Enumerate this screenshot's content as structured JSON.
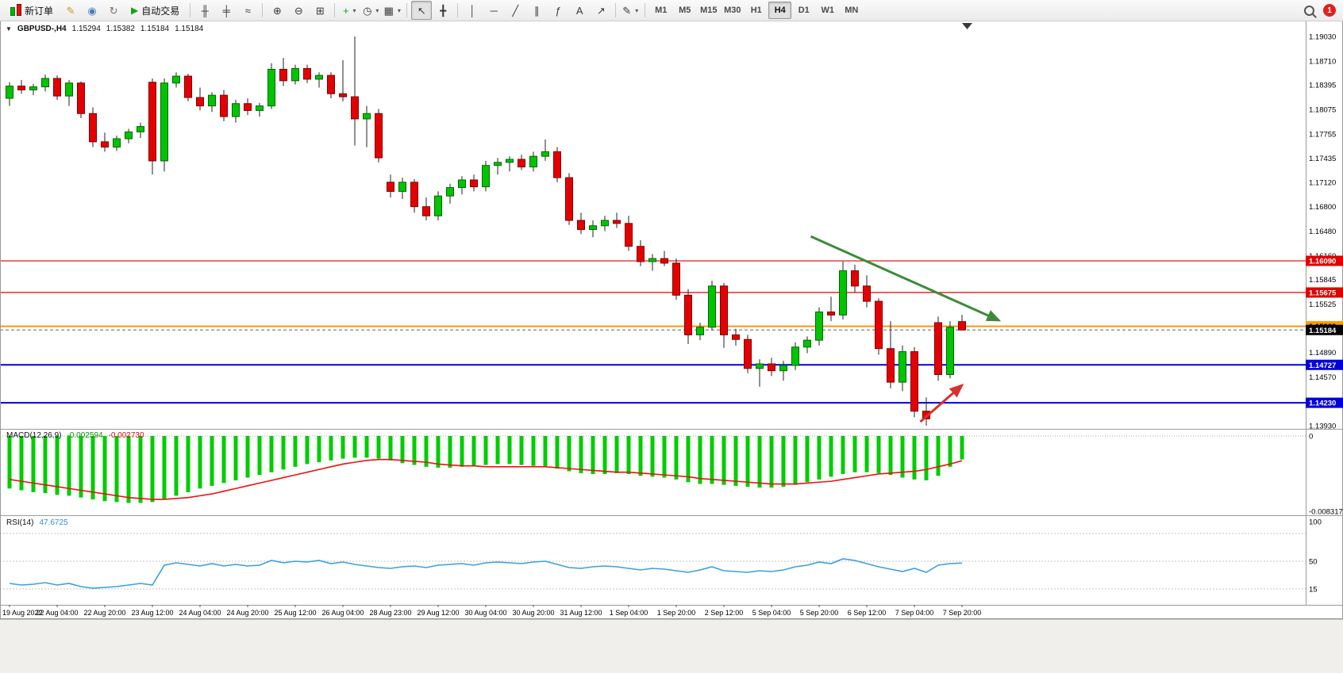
{
  "toolbar": {
    "items": [
      {
        "type": "labeled",
        "name": "new-order-button",
        "icon": "new-order-icon",
        "label": "新订单"
      },
      {
        "type": "icon",
        "name": "mql5-signals-button",
        "icon": "quill-icon",
        "glyph": "✎",
        "color": "#c79a1e"
      },
      {
        "type": "icon",
        "name": "community-button",
        "icon": "person-icon",
        "glyph": "◉",
        "color": "#4a7ebb"
      },
      {
        "type": "icon",
        "name": "market-refresh-button",
        "icon": "refresh-icon",
        "glyph": "↻",
        "color": "#707070"
      },
      {
        "type": "labeled",
        "name": "autotrading-button",
        "icon": "play-icon",
        "glyph": "▶",
        "color": "#18a018",
        "label": "自动交易"
      },
      {
        "type": "sep"
      },
      {
        "type": "icon",
        "name": "bar-chart-button",
        "icon": "bar-chart-icon",
        "glyph": "╫"
      },
      {
        "type": "icon",
        "name": "candlestick-chart-button",
        "icon": "candlestick-icon",
        "glyph": "╪"
      },
      {
        "type": "icon",
        "name": "line-chart-button",
        "icon": "line-chart-icon",
        "glyph": "≈"
      },
      {
        "type": "sep"
      },
      {
        "type": "icon",
        "name": "zoom-in-button",
        "icon": "zoom-in-icon",
        "glyph": "⊕"
      },
      {
        "type": "icon",
        "name": "zoom-out-button",
        "icon": "zoom-out-icon",
        "glyph": "⊖"
      },
      {
        "type": "icon",
        "name": "tile-windows-button",
        "icon": "tile-windows-icon",
        "glyph": "⊞"
      },
      {
        "type": "sep"
      },
      {
        "type": "icon",
        "name": "new-chart-button",
        "icon": "new-chart-icon",
        "glyph": "+",
        "color": "#18a018",
        "dropdown": true
      },
      {
        "type": "icon",
        "name": "periods-button",
        "icon": "clock-icon",
        "glyph": "◷",
        "dropdown": true
      },
      {
        "type": "icon",
        "name": "templates-button",
        "icon": "template-icon",
        "glyph": "▦",
        "dropdown": true
      },
      {
        "type": "sep"
      },
      {
        "type": "icon",
        "name": "cursor-button",
        "icon": "cursor-icon",
        "glyph": "↖",
        "active": true
      },
      {
        "type": "icon",
        "name": "crosshair-button",
        "icon": "crosshair-icon",
        "glyph": "╋"
      },
      {
        "type": "sep"
      },
      {
        "type": "icon",
        "name": "vertical-line-button",
        "icon": "vertical-line-icon",
        "glyph": "│"
      },
      {
        "type": "icon",
        "name": "horizontal-line-button",
        "icon": "horizontal-line-icon",
        "glyph": "─"
      },
      {
        "type": "icon",
        "name": "trendline-button",
        "icon": "trendline-icon",
        "glyph": "╱"
      },
      {
        "type": "icon",
        "name": "channel-button",
        "icon": "channel-icon",
        "glyph": "∥"
      },
      {
        "type": "icon",
        "name": "fibonacci-button",
        "icon": "fibonacci-icon",
        "glyph": "ƒ"
      },
      {
        "type": "icon",
        "name": "text-label-button",
        "icon": "text-icon",
        "glyph": "A"
      },
      {
        "type": "icon",
        "name": "arrows-tool-button",
        "icon": "arrow-symbol-icon",
        "glyph": "↗"
      },
      {
        "type": "sep"
      },
      {
        "type": "icon",
        "name": "drawing-tools-button",
        "icon": "pencil-icon",
        "glyph": "✎",
        "dropdown": true
      },
      {
        "type": "sep"
      },
      {
        "type": "timeframes"
      },
      {
        "type": "spacer"
      },
      {
        "type": "search"
      },
      {
        "type": "badge"
      }
    ],
    "timeframes": [
      {
        "label": "M1"
      },
      {
        "label": "M5"
      },
      {
        "label": "M15"
      },
      {
        "label": "M30"
      },
      {
        "label": "H1"
      },
      {
        "label": "H4",
        "active": true
      },
      {
        "label": "D1"
      },
      {
        "label": "W1"
      },
      {
        "label": "MN"
      }
    ],
    "notification_count": "1"
  },
  "chart": {
    "title": {
      "expander": "▼",
      "symbol": "GBPUSD-,H4",
      "open": "1.15294",
      "high": "1.15382",
      "low": "1.15184",
      "close": "1.15184"
    }
  },
  "chart_data": {
    "type": "candlestick",
    "symbol": "GBPUSD-",
    "timeframe": "H4",
    "price_axis": {
      "min": 1.1393,
      "max": 1.1903,
      "ticks": [
        "1.19030",
        "1.18710",
        "1.18395",
        "1.18075",
        "1.17755",
        "1.17435",
        "1.17120",
        "1.16800",
        "1.16480",
        "1.16160",
        "1.15845",
        "1.15525",
        "1.15205",
        "1.14890",
        "1.14570",
        "1.14250",
        "1.13930"
      ]
    },
    "time_labels": [
      "19 Aug 2022",
      "22 Aug 04:00",
      "22 Aug 20:00",
      "23 Aug 12:00",
      "24 Aug 04:00",
      "24 Aug 20:00",
      "25 Aug 12:00",
      "26 Aug 04:00",
      "28 Aug 23:00",
      "29 Aug 12:00",
      "30 Aug 04:00",
      "30 Aug 20:00",
      "31 Aug 12:00",
      "1 Sep 04:00",
      "1 Sep 20:00",
      "2 Sep 12:00",
      "5 Sep 04:00",
      "5 Sep 20:00",
      "6 Sep 12:00",
      "7 Sep 04:00",
      "7 Sep 20:00"
    ],
    "bars_per_label": 4,
    "candles": [
      [
        1.1822,
        1.1843,
        1.1812,
        1.1838
      ],
      [
        1.1838,
        1.1846,
        1.1828,
        1.1833
      ],
      [
        1.1833,
        1.1841,
        1.1826,
        1.1837
      ],
      [
        1.1837,
        1.1853,
        1.1831,
        1.1848
      ],
      [
        1.1848,
        1.1852,
        1.182,
        1.1825
      ],
      [
        1.1825,
        1.1846,
        1.1812,
        1.1842
      ],
      [
        1.1842,
        1.1844,
        1.1796,
        1.1802
      ],
      [
        1.1802,
        1.181,
        1.1758,
        1.1765
      ],
      [
        1.1765,
        1.1777,
        1.1752,
        1.1758
      ],
      [
        1.1758,
        1.1773,
        1.1753,
        1.1769
      ],
      [
        1.1769,
        1.1782,
        1.1763,
        1.1778
      ],
      [
        1.1778,
        1.179,
        1.177,
        1.1785
      ],
      [
        1.1843,
        1.1848,
        1.1722,
        1.174
      ],
      [
        1.174,
        1.1848,
        1.1726,
        1.1842
      ],
      [
        1.1842,
        1.1856,
        1.1836,
        1.1851
      ],
      [
        1.1851,
        1.1854,
        1.1818,
        1.1823
      ],
      [
        1.1823,
        1.1836,
        1.1806,
        1.1812
      ],
      [
        1.1812,
        1.183,
        1.1804,
        1.1826
      ],
      [
        1.1826,
        1.1833,
        1.1792,
        1.1798
      ],
      [
        1.1798,
        1.182,
        1.179,
        1.1815
      ],
      [
        1.1815,
        1.1822,
        1.18,
        1.1806
      ],
      [
        1.1806,
        1.1816,
        1.1798,
        1.1812
      ],
      [
        1.1812,
        1.1868,
        1.1808,
        1.186
      ],
      [
        1.186,
        1.1875,
        1.1838,
        1.1845
      ],
      [
        1.1845,
        1.1866,
        1.184,
        1.1861
      ],
      [
        1.1861,
        1.1866,
        1.1842,
        1.1847
      ],
      [
        1.1847,
        1.1856,
        1.1836,
        1.1852
      ],
      [
        1.1852,
        1.1856,
        1.1822,
        1.1828
      ],
      [
        1.1828,
        1.1872,
        1.1818,
        1.1824
      ],
      [
        1.1824,
        1.1903,
        1.176,
        1.1795
      ],
      [
        1.1795,
        1.1812,
        1.1758,
        1.1802
      ],
      [
        1.1802,
        1.1808,
        1.1738,
        1.1744
      ],
      [
        1.1712,
        1.1722,
        1.1692,
        1.17
      ],
      [
        1.17,
        1.1718,
        1.169,
        1.1712
      ],
      [
        1.1712,
        1.1716,
        1.1672,
        1.168
      ],
      [
        1.168,
        1.1692,
        1.1662,
        1.1668
      ],
      [
        1.1668,
        1.17,
        1.1662,
        1.1694
      ],
      [
        1.1694,
        1.171,
        1.1684,
        1.1705
      ],
      [
        1.1705,
        1.172,
        1.1696,
        1.1715
      ],
      [
        1.1715,
        1.1722,
        1.17,
        1.1706
      ],
      [
        1.1706,
        1.174,
        1.17,
        1.1734
      ],
      [
        1.1734,
        1.1744,
        1.1722,
        1.1738
      ],
      [
        1.1738,
        1.1746,
        1.1726,
        1.1742
      ],
      [
        1.1742,
        1.1748,
        1.1728,
        1.1732
      ],
      [
        1.1732,
        1.1752,
        1.1726,
        1.1746
      ],
      [
        1.1746,
        1.1768,
        1.174,
        1.1752
      ],
      [
        1.1752,
        1.1758,
        1.1712,
        1.1718
      ],
      [
        1.1718,
        1.1724,
        1.1656,
        1.1662
      ],
      [
        1.1662,
        1.1672,
        1.1644,
        1.165
      ],
      [
        1.165,
        1.1662,
        1.164,
        1.1655
      ],
      [
        1.1655,
        1.1668,
        1.1648,
        1.1662
      ],
      [
        1.1662,
        1.1672,
        1.1652,
        1.1658
      ],
      [
        1.1658,
        1.1668,
        1.1622,
        1.1628
      ],
      [
        1.1628,
        1.1636,
        1.1602,
        1.1608
      ],
      [
        1.1608,
        1.1618,
        1.1596,
        1.1612
      ],
      [
        1.1612,
        1.1622,
        1.1602,
        1.1606
      ],
      [
        1.1606,
        1.1612,
        1.1558,
        1.1564
      ],
      [
        1.1564,
        1.1572,
        1.15,
        1.1512
      ],
      [
        1.1512,
        1.1528,
        1.1505,
        1.1522
      ],
      [
        1.1522,
        1.1583,
        1.1518,
        1.1576
      ],
      [
        1.1576,
        1.158,
        1.1495,
        1.1512
      ],
      [
        1.1512,
        1.152,
        1.1498,
        1.1506
      ],
      [
        1.1506,
        1.1512,
        1.1462,
        1.1468
      ],
      [
        1.1468,
        1.148,
        1.1444,
        1.1474
      ],
      [
        1.1474,
        1.1482,
        1.1458,
        1.1465
      ],
      [
        1.1465,
        1.1478,
        1.1452,
        1.1472
      ],
      [
        1.1472,
        1.1502,
        1.1466,
        1.1496
      ],
      [
        1.1496,
        1.151,
        1.1488,
        1.1505
      ],
      [
        1.1505,
        1.1548,
        1.1498,
        1.1542
      ],
      [
        1.1542,
        1.1562,
        1.153,
        1.1538
      ],
      [
        1.1538,
        1.1608,
        1.1532,
        1.1596
      ],
      [
        1.1596,
        1.1604,
        1.1568,
        1.1576
      ],
      [
        1.1576,
        1.159,
        1.1548,
        1.1556
      ],
      [
        1.1556,
        1.156,
        1.1486,
        1.1494
      ],
      [
        1.1494,
        1.153,
        1.1442,
        1.145
      ],
      [
        1.145,
        1.1498,
        1.1438,
        1.149
      ],
      [
        1.149,
        1.1496,
        1.1404,
        1.1412
      ],
      [
        1.1412,
        1.143,
        1.1393,
        1.1402
      ],
      [
        1.1528,
        1.1536,
        1.1452,
        1.146
      ],
      [
        1.146,
        1.153,
        1.1455,
        1.1522
      ],
      [
        1.15294,
        1.15382,
        1.15184,
        1.15184
      ]
    ],
    "bull_color": "#00c400",
    "bear_color": "#e40000",
    "hlines": [
      {
        "name": "resistance-line-1",
        "price": 1.1609,
        "label": "1.16090",
        "color": "#e00000",
        "width": 1.2
      },
      {
        "name": "resistance-line-2",
        "price": 1.15675,
        "label": "1.15675",
        "color": "#e00000",
        "width": 1.2
      },
      {
        "name": "pivot-line",
        "price": 1.15232,
        "label": "1.15232",
        "color": "#ff9800",
        "width": 2
      },
      {
        "name": "support-line-1",
        "price": 1.14727,
        "label": "1.14727",
        "color": "#0000d8",
        "width": 2
      },
      {
        "name": "support-line-2",
        "price": 1.1423,
        "label": "1.14230",
        "color": "#0000d8",
        "width": 2
      }
    ],
    "current_price": {
      "price": 1.15184,
      "label": "1.15184",
      "color": "#000000"
    },
    "arrows": [
      {
        "name": "downtrend-arrow",
        "bar1": 67.3,
        "price1": 1.1641,
        "bar2": 83.1,
        "price2": 1.1531,
        "color": "#3b8b3b",
        "width": 3
      },
      {
        "name": "rebound-arrow",
        "bar1": 76.5,
        "price1": 1.1398,
        "bar2": 80.0,
        "price2": 1.1446,
        "color": "#d83030",
        "width": 3
      }
    ],
    "macd": {
      "label": "MACD(12,26,9)",
      "value": "-0.002594",
      "signal_value": "-0.002730",
      "zero_label": "0",
      "min_label": "-0.008317",
      "scale_min": -0.008317,
      "hist_color": "#00cc00",
      "signal_color": "#f01010",
      "histogram": [
        -0.0058,
        -0.006,
        -0.0062,
        -0.0063,
        -0.0065,
        -0.0066,
        -0.0068,
        -0.007,
        -0.0072,
        -0.0073,
        -0.0074,
        -0.0074,
        -0.0073,
        -0.007,
        -0.0066,
        -0.0062,
        -0.0058,
        -0.0055,
        -0.0052,
        -0.0049,
        -0.0046,
        -0.0043,
        -0.004,
        -0.0037,
        -0.0034,
        -0.0031,
        -0.0029,
        -0.0027,
        -0.0025,
        -0.0024,
        -0.0024,
        -0.0025,
        -0.0027,
        -0.003,
        -0.0032,
        -0.0034,
        -0.0035,
        -0.0035,
        -0.0034,
        -0.0033,
        -0.0032,
        -0.0031,
        -0.0031,
        -0.0032,
        -0.0033,
        -0.0034,
        -0.0036,
        -0.0039,
        -0.0041,
        -0.0042,
        -0.0042,
        -0.0041,
        -0.0042,
        -0.0044,
        -0.0045,
        -0.0046,
        -0.0048,
        -0.0051,
        -0.0053,
        -0.0053,
        -0.0054,
        -0.0055,
        -0.0056,
        -0.0057,
        -0.0057,
        -0.0056,
        -0.0054,
        -0.0051,
        -0.0048,
        -0.0045,
        -0.0042,
        -0.004,
        -0.004,
        -0.0041,
        -0.0043,
        -0.0046,
        -0.0048,
        -0.0049,
        -0.0044,
        -0.0034,
        -0.002594
      ],
      "signal": [
        -0.0048,
        -0.005,
        -0.0052,
        -0.0054,
        -0.0056,
        -0.0058,
        -0.006,
        -0.0062,
        -0.0064,
        -0.0066,
        -0.0068,
        -0.0069,
        -0.007,
        -0.007,
        -0.0069,
        -0.0068,
        -0.0066,
        -0.0064,
        -0.0061,
        -0.0058,
        -0.0055,
        -0.0052,
        -0.0049,
        -0.0046,
        -0.0043,
        -0.004,
        -0.0037,
        -0.0034,
        -0.0031,
        -0.0029,
        -0.0027,
        -0.0026,
        -0.0026,
        -0.0027,
        -0.0028,
        -0.0029,
        -0.0031,
        -0.0032,
        -0.0033,
        -0.0033,
        -0.0034,
        -0.0034,
        -0.0034,
        -0.0034,
        -0.0034,
        -0.0034,
        -0.0035,
        -0.0036,
        -0.0037,
        -0.0038,
        -0.0039,
        -0.004,
        -0.004,
        -0.0041,
        -0.0042,
        -0.0043,
        -0.0044,
        -0.0045,
        -0.0047,
        -0.0048,
        -0.0049,
        -0.005,
        -0.0051,
        -0.0052,
        -0.0053,
        -0.0053,
        -0.0053,
        -0.0052,
        -0.0051,
        -0.005,
        -0.0048,
        -0.0046,
        -0.0044,
        -0.0042,
        -0.0041,
        -0.004,
        -0.0039,
        -0.0037,
        -0.0034,
        -0.0031,
        -0.00273
      ]
    },
    "rsi": {
      "label": "RSI(14)",
      "value": "47.6725",
      "color": "#3aa0dd",
      "axis_labels": [
        {
          "text": "100",
          "v": 100
        },
        {
          "text": "50",
          "v": 50
        },
        {
          "text": "15",
          "v": 15
        }
      ],
      "levels": [
        85,
        50,
        15
      ],
      "values": [
        22,
        20,
        21,
        23,
        20,
        22,
        18,
        16,
        17,
        18,
        20,
        22,
        20,
        45,
        48,
        46,
        44,
        47,
        44,
        46,
        44,
        45,
        51,
        48,
        50,
        49,
        51,
        47,
        49,
        46,
        44,
        42,
        41,
        43,
        44,
        42,
        45,
        46,
        47,
        45,
        48,
        49,
        48,
        47,
        49,
        50,
        46,
        42,
        41,
        43,
        44,
        43,
        41,
        39,
        41,
        40,
        38,
        36,
        39,
        43,
        38,
        37,
        36,
        38,
        37,
        39,
        43,
        45,
        49,
        47,
        53,
        51,
        47,
        43,
        40,
        37,
        41,
        36,
        45,
        47,
        47.6725
      ]
    }
  }
}
